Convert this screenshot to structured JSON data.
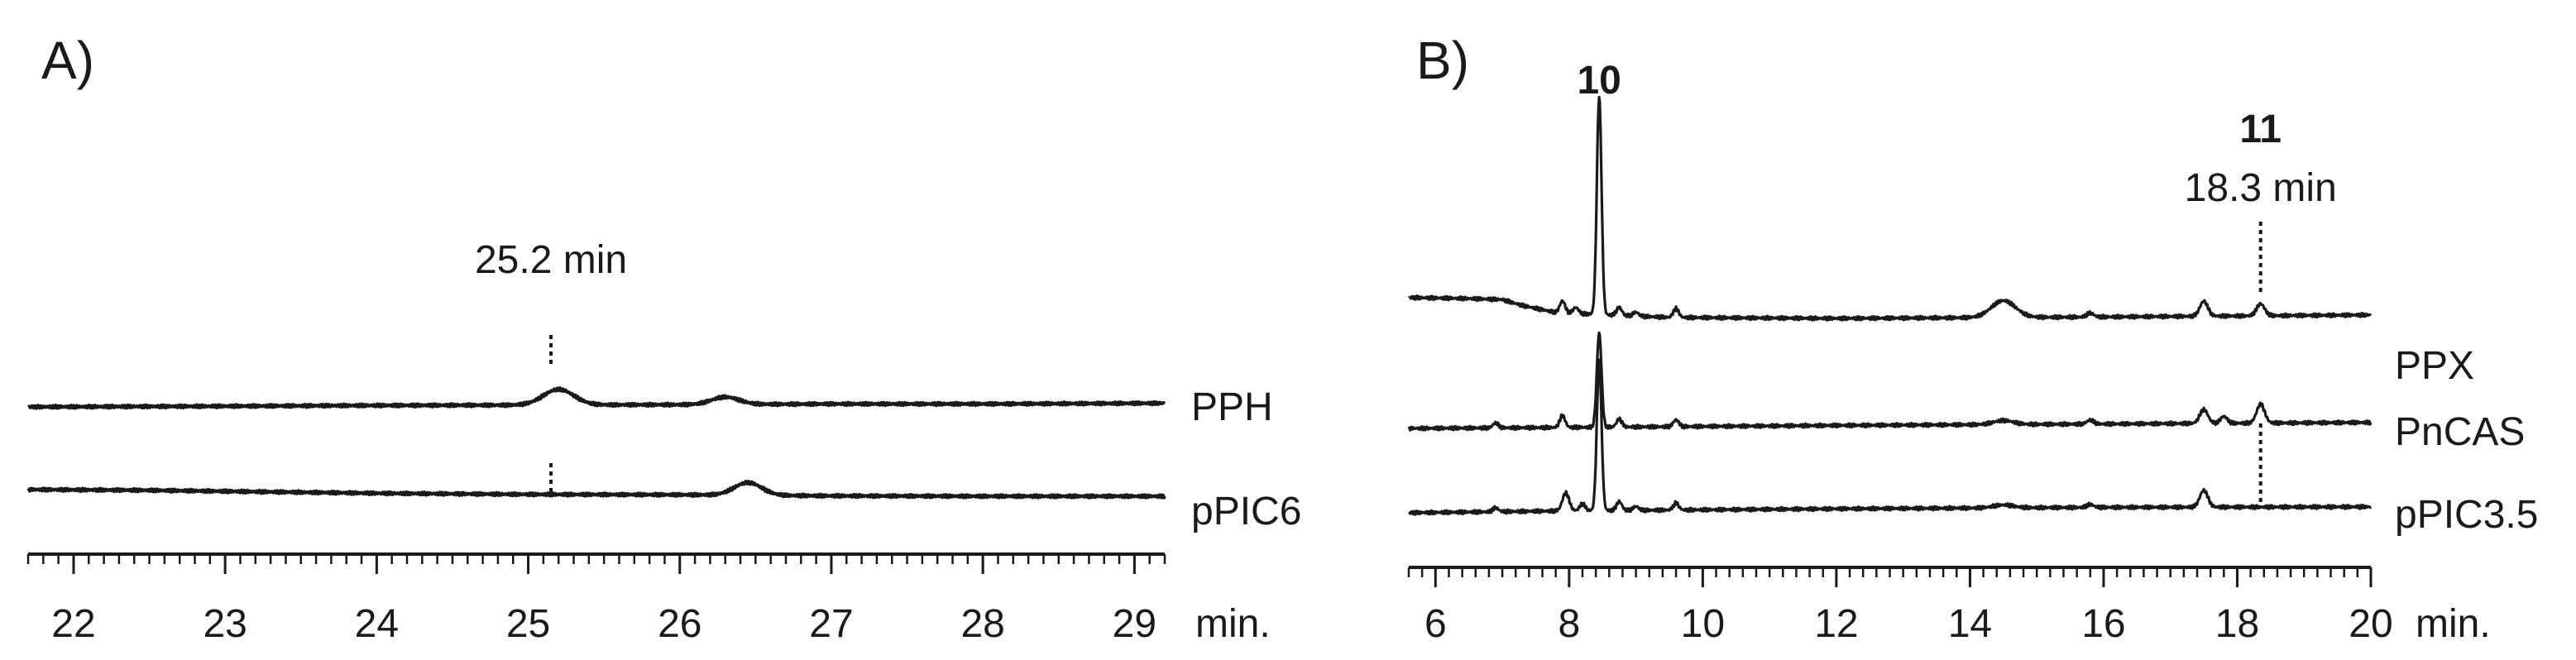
{
  "chart_data": [
    {
      "type": "line",
      "panel_label": "A)",
      "xlabel": "min.",
      "xlim": [
        21.7,
        29.2
      ],
      "xticks": [
        22,
        23,
        24,
        25,
        26,
        27,
        28,
        29
      ],
      "tick_labels": [
        "22",
        "23",
        "24",
        "25",
        "26",
        "27",
        "28",
        "29"
      ],
      "minor_tick_step": 0.1,
      "annotations": [
        {
          "text": "25.2 min",
          "x": 25.15
        }
      ],
      "series": [
        {
          "name": "PPH",
          "baseline": [
            [
              21.7,
              0.0
            ],
            [
              23.0,
              0.1
            ],
            [
              24.0,
              0.2
            ],
            [
              25.0,
              0.25
            ],
            [
              26.0,
              0.3
            ],
            [
              27.0,
              0.4
            ],
            [
              28.0,
              0.4
            ],
            [
              29.2,
              0.5
            ]
          ],
          "peaks": [
            {
              "x": 25.2,
              "height": 2.1,
              "width": 0.1
            },
            {
              "x": 26.3,
              "height": 1.0,
              "width": 0.09
            }
          ]
        },
        {
          "name": "pPIC6",
          "baseline": [
            [
              21.7,
              0.9
            ],
            [
              22.5,
              0.8
            ],
            [
              24.0,
              0.4
            ],
            [
              25.0,
              0.25
            ],
            [
              26.0,
              0.2
            ],
            [
              27.0,
              0.05
            ],
            [
              28.0,
              0.0
            ],
            [
              29.2,
              0.0
            ]
          ],
          "peaks": [
            {
              "x": 26.45,
              "height": 1.7,
              "width": 0.09
            }
          ]
        }
      ]
    },
    {
      "type": "line",
      "panel_label": "B)",
      "xlabel": "min.",
      "xlim": [
        5.6,
        20.0
      ],
      "xticks": [
        6,
        8,
        10,
        12,
        14,
        16,
        18,
        20
      ],
      "tick_labels": [
        "6",
        "8",
        "10",
        "12",
        "14",
        "16",
        "18",
        "20"
      ],
      "minor_tick_step": 0.2,
      "peak_labels": [
        {
          "text": "10",
          "x": 8.45
        },
        {
          "text": "11",
          "x": 18.35
        }
      ],
      "annotations": [
        {
          "text": "18.3 min",
          "x": 18.35
        }
      ],
      "series": [
        {
          "name": "PPX",
          "baseline": [
            [
              5.6,
              2.1
            ],
            [
              6.5,
              2.0
            ],
            [
              7.0,
              1.9
            ],
            [
              7.3,
              1.3
            ],
            [
              7.8,
              0.6
            ],
            [
              8.4,
              0.4
            ],
            [
              9.5,
              0.1
            ],
            [
              12.0,
              0.0
            ],
            [
              16.0,
              0.15
            ],
            [
              20.0,
              0.35
            ]
          ],
          "peaks": [
            {
              "x": 7.9,
              "height": 1.2,
              "width": 0.04
            },
            {
              "x": 8.1,
              "height": 0.6,
              "width": 0.04
            },
            {
              "x": 8.45,
              "height": 22,
              "width": 0.035
            },
            {
              "x": 8.75,
              "height": 0.8,
              "width": 0.04
            },
            {
              "x": 9.0,
              "height": 0.4,
              "width": 0.04
            },
            {
              "x": 9.6,
              "height": 0.9,
              "width": 0.04
            },
            {
              "x": 14.5,
              "height": 1.7,
              "width": 0.18
            },
            {
              "x": 15.8,
              "height": 0.4,
              "width": 0.05
            },
            {
              "x": 17.5,
              "height": 1.5,
              "width": 0.06
            },
            {
              "x": 18.35,
              "height": 1.2,
              "width": 0.06
            }
          ]
        },
        {
          "name": "PnCAS",
          "baseline": [
            [
              5.6,
              0.0
            ],
            [
              8.0,
              0.1
            ],
            [
              12.0,
              0.3
            ],
            [
              16.0,
              0.45
            ],
            [
              20.0,
              0.6
            ]
          ],
          "peaks": [
            {
              "x": 6.9,
              "height": 0.5,
              "width": 0.04
            },
            {
              "x": 7.9,
              "height": 1.2,
              "width": 0.04
            },
            {
              "x": 8.45,
              "height": 9.5,
              "width": 0.035
            },
            {
              "x": 8.75,
              "height": 0.8,
              "width": 0.04
            },
            {
              "x": 9.6,
              "height": 0.7,
              "width": 0.04
            },
            {
              "x": 14.5,
              "height": 0.4,
              "width": 0.15
            },
            {
              "x": 15.8,
              "height": 0.4,
              "width": 0.05
            },
            {
              "x": 17.5,
              "height": 1.4,
              "width": 0.06
            },
            {
              "x": 17.8,
              "height": 0.7,
              "width": 0.05
            },
            {
              "x": 18.35,
              "height": 1.9,
              "width": 0.06
            }
          ]
        },
        {
          "name": "pPIC3.5",
          "baseline": [
            [
              5.6,
              0.0
            ],
            [
              8.0,
              0.2
            ],
            [
              12.0,
              0.4
            ],
            [
              16.0,
              0.55
            ],
            [
              20.0,
              0.6
            ]
          ],
          "peaks": [
            {
              "x": 6.9,
              "height": 0.4,
              "width": 0.04
            },
            {
              "x": 7.95,
              "height": 1.8,
              "width": 0.05
            },
            {
              "x": 8.2,
              "height": 0.7,
              "width": 0.04
            },
            {
              "x": 8.45,
              "height": 15,
              "width": 0.035
            },
            {
              "x": 8.75,
              "height": 0.9,
              "width": 0.04
            },
            {
              "x": 9.0,
              "height": 0.4,
              "width": 0.04
            },
            {
              "x": 9.6,
              "height": 0.7,
              "width": 0.04
            },
            {
              "x": 14.5,
              "height": 0.3,
              "width": 0.15
            },
            {
              "x": 15.8,
              "height": 0.3,
              "width": 0.05
            },
            {
              "x": 17.5,
              "height": 1.7,
              "width": 0.06
            }
          ]
        }
      ]
    }
  ],
  "colors": {
    "trace": "#1a1a1a",
    "axis": "#1a1a1a",
    "background": "#ffffff"
  }
}
